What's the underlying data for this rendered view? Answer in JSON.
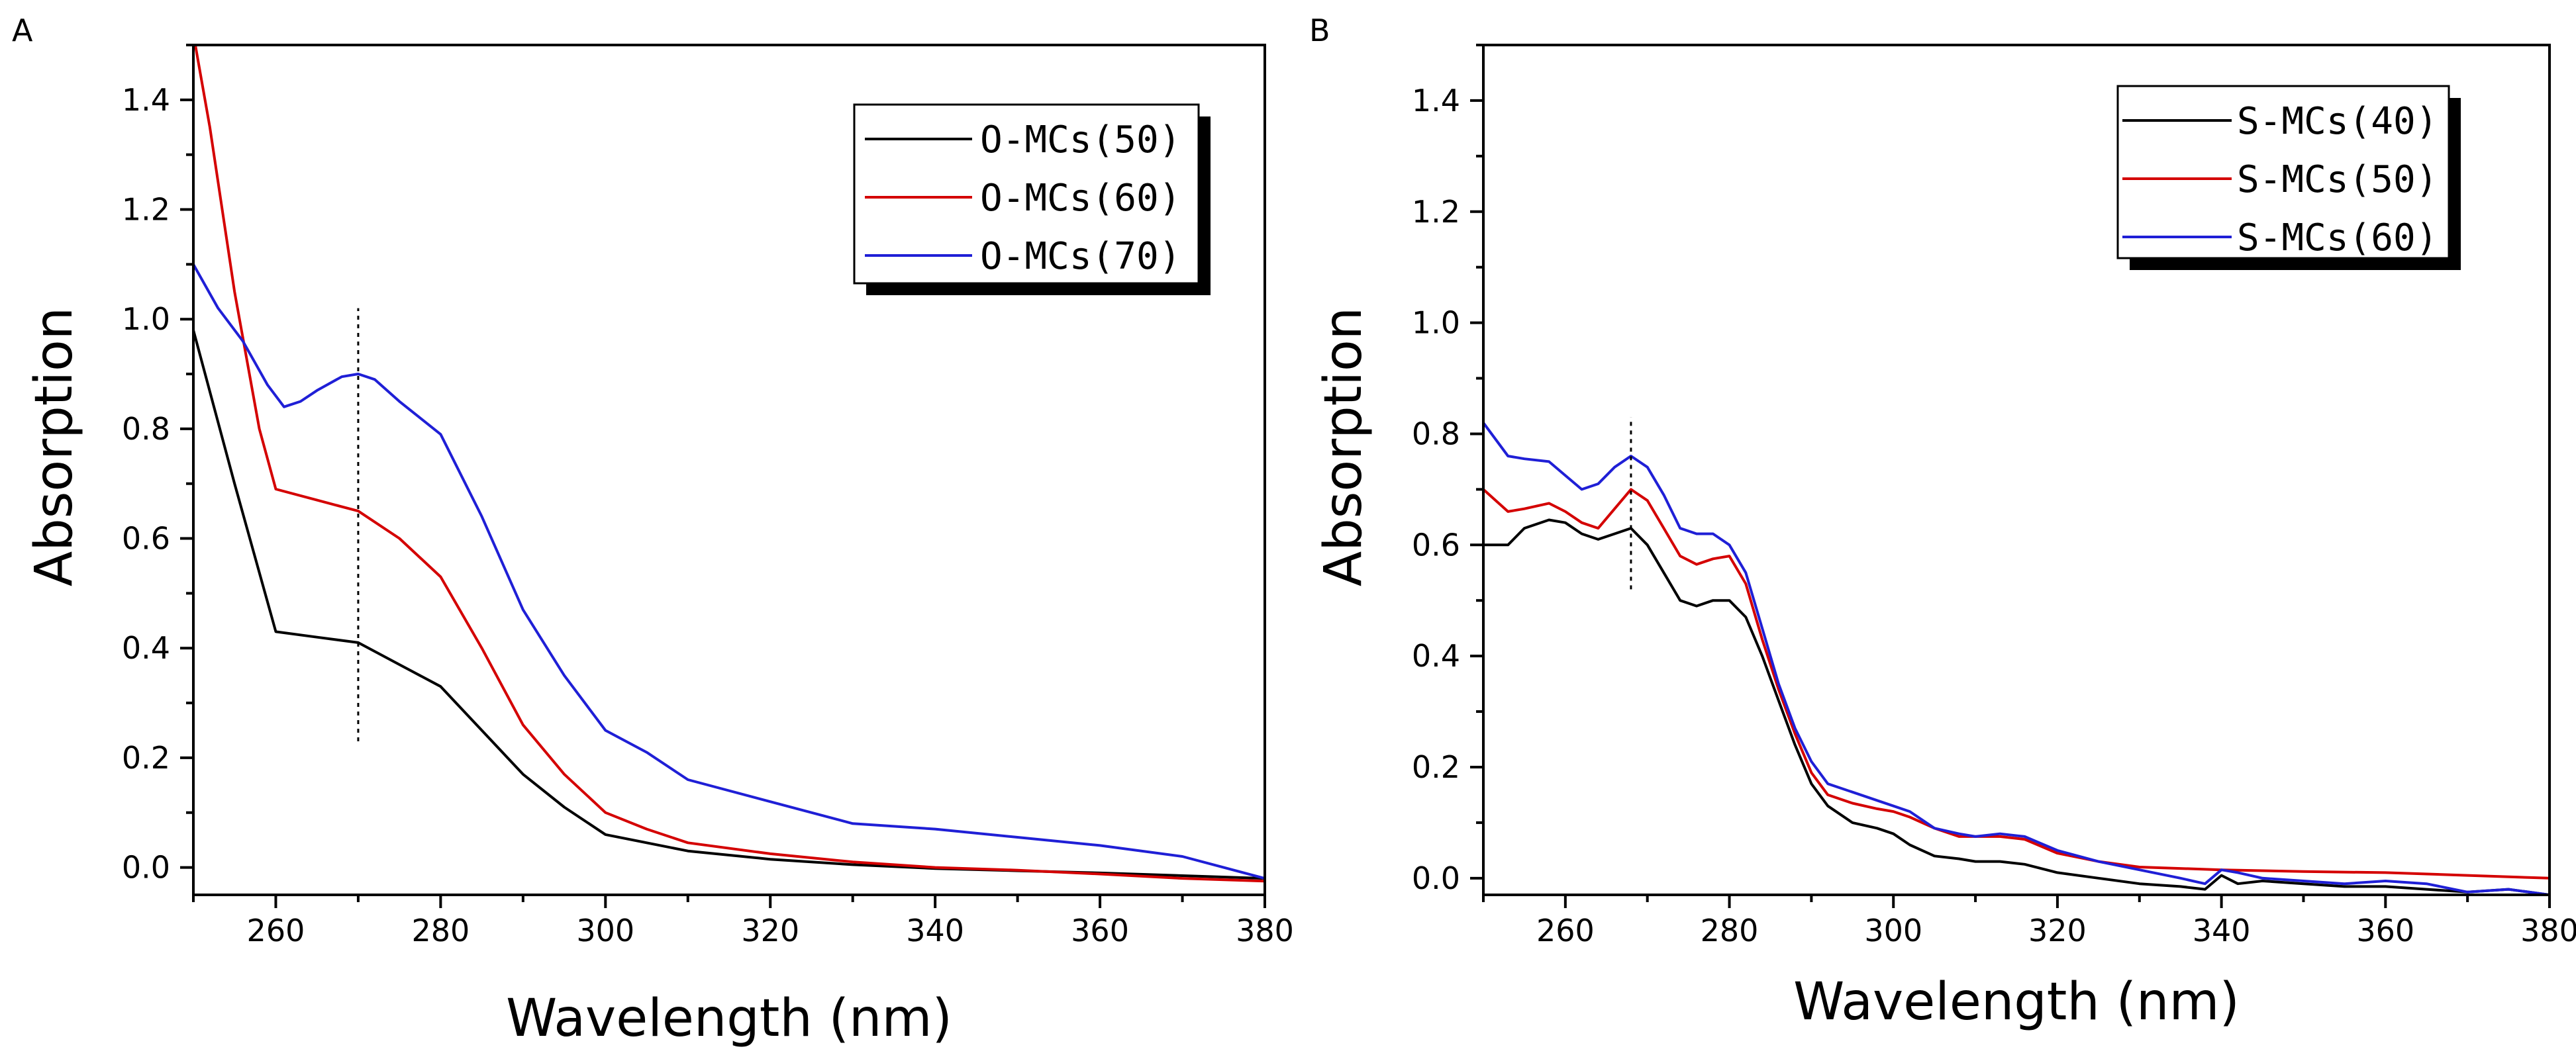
{
  "chart_data": [
    {
      "panel": "A",
      "type": "line",
      "xlabel": "Wavelength (nm)",
      "ylabel": "Absorption",
      "xlim": [
        250,
        380
      ],
      "ylim": [
        -0.05,
        1.5
      ],
      "xticks": [
        260,
        280,
        300,
        320,
        340,
        360,
        380
      ],
      "yticks": [
        0.0,
        0.2,
        0.4,
        0.6,
        0.8,
        1.0,
        1.2,
        1.4
      ],
      "legend_position": "top-right",
      "annotations": [
        {
          "type": "dotted-vertical-line",
          "x": 270,
          "y_from": 0.23,
          "y_to": 1.02
        }
      ],
      "series": [
        {
          "name": "O-MCs(50)",
          "color": "#000000",
          "x": [
            250,
            255,
            260,
            265,
            270,
            275,
            280,
            285,
            290,
            295,
            300,
            305,
            310,
            320,
            330,
            340,
            350,
            360,
            370,
            380
          ],
          "y": [
            0.98,
            0.7,
            0.43,
            0.42,
            0.41,
            0.37,
            0.33,
            0.25,
            0.17,
            0.11,
            0.06,
            0.045,
            0.03,
            0.015,
            0.005,
            -0.002,
            -0.006,
            -0.01,
            -0.015,
            -0.02
          ]
        },
        {
          "name": "O-MCs(60)",
          "color": "#d40000",
          "x": [
            250,
            252,
            255,
            258,
            260,
            265,
            270,
            275,
            280,
            285,
            290,
            295,
            300,
            305,
            310,
            320,
            330,
            340,
            350,
            360,
            370,
            380
          ],
          "y": [
            1.52,
            1.35,
            1.05,
            0.8,
            0.69,
            0.67,
            0.65,
            0.6,
            0.53,
            0.4,
            0.26,
            0.17,
            0.1,
            0.07,
            0.045,
            0.025,
            0.01,
            0.0,
            -0.005,
            -0.012,
            -0.02,
            -0.025
          ]
        },
        {
          "name": "O-MCs(70)",
          "color": "#1f1fd6",
          "x": [
            250,
            253,
            256,
            259,
            261,
            263,
            265,
            268,
            270,
            272,
            275,
            280,
            285,
            290,
            295,
            300,
            305,
            310,
            320,
            330,
            340,
            350,
            360,
            370,
            375,
            380
          ],
          "y": [
            1.1,
            1.02,
            0.96,
            0.88,
            0.84,
            0.85,
            0.87,
            0.895,
            0.9,
            0.89,
            0.85,
            0.79,
            0.64,
            0.47,
            0.35,
            0.25,
            0.21,
            0.16,
            0.12,
            0.08,
            0.07,
            0.055,
            0.04,
            0.02,
            0.0,
            -0.02
          ]
        }
      ]
    },
    {
      "panel": "B",
      "type": "line",
      "xlabel": "Wavelength (nm)",
      "ylabel": "Absorption",
      "xlim": [
        250,
        380
      ],
      "ylim": [
        -0.03,
        1.5
      ],
      "xticks": [
        260,
        280,
        300,
        320,
        340,
        360,
        380
      ],
      "yticks": [
        0.0,
        0.2,
        0.4,
        0.6,
        0.8,
        1.0,
        1.2,
        1.4
      ],
      "legend_position": "top-right",
      "annotations": [
        {
          "type": "dotted-vertical-line",
          "x": 268,
          "y_from": 0.52,
          "y_to": 0.83
        }
      ],
      "series": [
        {
          "name": "S-MCs(40)",
          "color": "#000000",
          "x": [
            250,
            253,
            255,
            258,
            260,
            262,
            264,
            266,
            268,
            270,
            272,
            274,
            276,
            278,
            280,
            282,
            284,
            286,
            288,
            290,
            292,
            295,
            298,
            300,
            302,
            305,
            308,
            310,
            313,
            316,
            320,
            325,
            330,
            335,
            338,
            340,
            342,
            345,
            350,
            355,
            360,
            365,
            370,
            375,
            380
          ],
          "y": [
            0.6,
            0.6,
            0.63,
            0.645,
            0.64,
            0.62,
            0.61,
            0.62,
            0.63,
            0.6,
            0.55,
            0.5,
            0.49,
            0.5,
            0.5,
            0.47,
            0.4,
            0.32,
            0.24,
            0.17,
            0.13,
            0.1,
            0.09,
            0.08,
            0.06,
            0.04,
            0.035,
            0.03,
            0.03,
            0.025,
            0.01,
            0.0,
            -0.01,
            -0.015,
            -0.02,
            0.005,
            -0.01,
            -0.005,
            -0.01,
            -0.015,
            -0.015,
            -0.02,
            -0.025,
            -0.02,
            -0.03
          ]
        },
        {
          "name": "S-MCs(50)",
          "color": "#d40000",
          "x": [
            250,
            253,
            255,
            258,
            260,
            262,
            264,
            266,
            268,
            270,
            272,
            274,
            276,
            278,
            280,
            282,
            284,
            286,
            288,
            290,
            292,
            295,
            298,
            300,
            302,
            305,
            308,
            310,
            313,
            316,
            320,
            325,
            330,
            340,
            350,
            360,
            370,
            380
          ],
          "y": [
            0.7,
            0.66,
            0.665,
            0.675,
            0.66,
            0.64,
            0.63,
            0.665,
            0.7,
            0.68,
            0.63,
            0.58,
            0.565,
            0.575,
            0.58,
            0.53,
            0.43,
            0.34,
            0.26,
            0.19,
            0.15,
            0.135,
            0.125,
            0.12,
            0.11,
            0.09,
            0.075,
            0.075,
            0.075,
            0.07,
            0.045,
            0.03,
            0.02,
            0.015,
            0.012,
            0.01,
            0.005,
            0.0
          ]
        },
        {
          "name": "S-MCs(60)",
          "color": "#1f1fd6",
          "x": [
            250,
            253,
            255,
            258,
            260,
            262,
            264,
            266,
            268,
            270,
            272,
            274,
            276,
            278,
            280,
            282,
            284,
            286,
            288,
            290,
            292,
            295,
            298,
            300,
            302,
            305,
            308,
            310,
            313,
            316,
            320,
            325,
            330,
            335,
            338,
            340,
            342,
            345,
            350,
            355,
            360,
            365,
            370,
            375,
            380
          ],
          "y": [
            0.82,
            0.76,
            0.755,
            0.75,
            0.725,
            0.7,
            0.71,
            0.74,
            0.76,
            0.74,
            0.69,
            0.63,
            0.62,
            0.62,
            0.6,
            0.55,
            0.45,
            0.35,
            0.27,
            0.21,
            0.17,
            0.155,
            0.14,
            0.13,
            0.12,
            0.09,
            0.08,
            0.075,
            0.08,
            0.075,
            0.05,
            0.03,
            0.015,
            0.0,
            -0.01,
            0.015,
            0.01,
            0.0,
            -0.005,
            -0.01,
            -0.005,
            -0.01,
            -0.025,
            -0.02,
            -0.03
          ]
        }
      ]
    }
  ]
}
